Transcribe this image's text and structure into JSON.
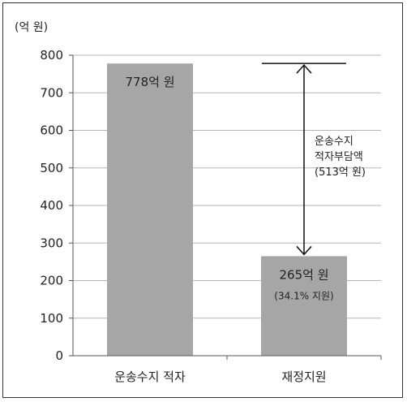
{
  "chart_data": {
    "type": "bar",
    "unit_label": "(억 원)",
    "categories": [
      "운송수지 적자",
      "재정지원"
    ],
    "values": [
      778,
      265
    ],
    "ylim": [
      0,
      800
    ],
    "yticks": [
      0,
      100,
      200,
      300,
      400,
      500,
      600,
      700,
      800
    ],
    "grid": true,
    "bar_color": "#a6a6a6",
    "data_labels": [
      {
        "main": "778억 원",
        "sub": ""
      },
      {
        "main": "265억 원",
        "sub": "(34.1% 지원)"
      }
    ],
    "annotation": {
      "lines": [
        "운송수지",
        "적자부담액",
        "(513억 원)"
      ],
      "value": 513,
      "from": 265,
      "to": 778
    }
  }
}
